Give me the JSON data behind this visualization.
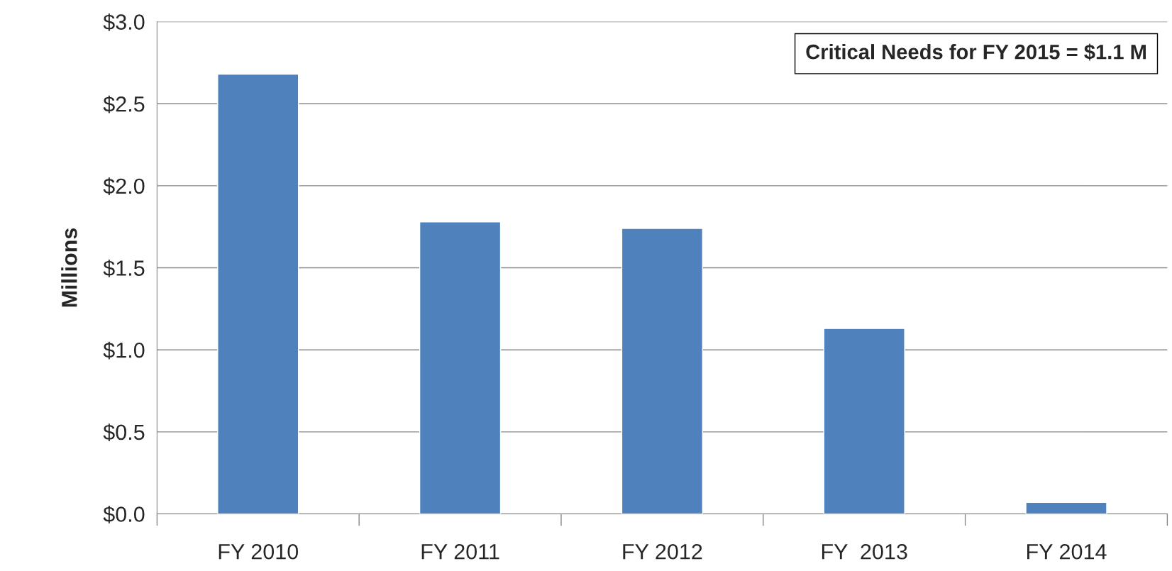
{
  "chart_data": {
    "type": "bar",
    "ylabel": "Millions",
    "categories": [
      "FY 2010",
      "FY 2011",
      "FY 2012",
      "FY  2013",
      "FY 2014"
    ],
    "values": [
      2.68,
      1.78,
      1.74,
      1.13,
      0.07
    ],
    "color": "#4f81bd",
    "ylim": [
      0,
      3.0
    ],
    "yticks": [
      {
        "value": 0,
        "label": "$0.0"
      },
      {
        "value": 0.5,
        "label": "$0.5"
      },
      {
        "value": 1.0,
        "label": "$1.0"
      },
      {
        "value": 1.5,
        "label": "$1.5"
      },
      {
        "value": 2.0,
        "label": "$2.0"
      },
      {
        "value": 2.5,
        "label": "$2.5"
      },
      {
        "value": 3.0,
        "label": "$3.0"
      }
    ],
    "grid": "y",
    "annotations": [
      "Critical Needs for FY 2015 = $1.1 M"
    ]
  }
}
